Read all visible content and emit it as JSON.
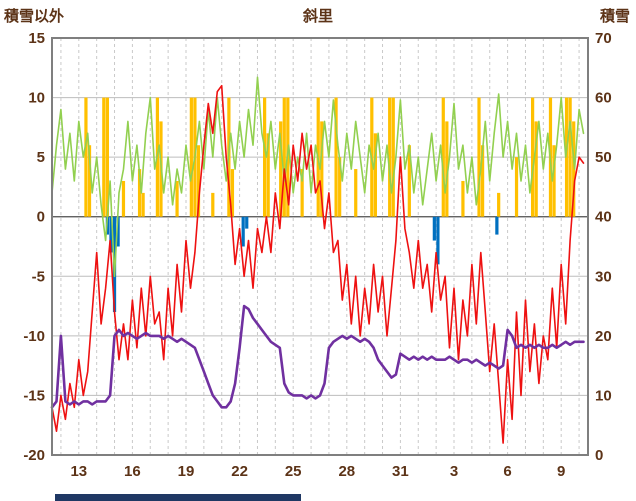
{
  "header": {
    "left_axis_title": "積雪以外",
    "chart_title": "斜里",
    "right_axis_title": "積雪"
  },
  "colors": {
    "text": "#5C3317",
    "grid_vertical": "#C9C9C9",
    "grid_horizontal": "#BDBDBD",
    "zero_line": "#4D4D4D",
    "border": "#7F7F7F",
    "background": "#FFFFFF"
  },
  "chart_data": {
    "type": "line",
    "title": "斜里",
    "grid": true,
    "left_axis": {
      "label": "積雪以外",
      "min": -20,
      "max": 15,
      "ticks": [
        15,
        10,
        5,
        0,
        -5,
        -10,
        -15,
        -20
      ]
    },
    "right_axis": {
      "label": "積雪",
      "min": 0,
      "max": 70,
      "ticks": [
        70,
        60,
        50,
        40,
        30,
        20,
        10,
        0
      ]
    },
    "x_axis": {
      "min": 11.5,
      "max": 41.5,
      "day_grid_start": 12,
      "day_grid_end": 41,
      "tick_positions": [
        13,
        16,
        19,
        22,
        25,
        28,
        31,
        34,
        37,
        40
      ],
      "tick_labels": [
        "13",
        "16",
        "19",
        "22",
        "25",
        "28",
        "31",
        "3",
        "6",
        "9"
      ]
    },
    "series": [
      {
        "name": "sunshine-bars",
        "type": "bar",
        "axis": "left",
        "color": "#FFC000",
        "bar_width_days": 0.18,
        "points": [
          [
            13.4,
            10
          ],
          [
            13.6,
            6
          ],
          [
            14.4,
            10
          ],
          [
            14.6,
            10
          ],
          [
            15.5,
            3
          ],
          [
            16.4,
            4
          ],
          [
            16.6,
            2
          ],
          [
            17.4,
            10
          ],
          [
            17.6,
            8
          ],
          [
            18.5,
            3
          ],
          [
            19.3,
            10
          ],
          [
            19.5,
            10
          ],
          [
            19.7,
            6
          ],
          [
            20.5,
            2
          ],
          [
            21.4,
            10
          ],
          [
            21.6,
            4
          ],
          [
            23.4,
            10
          ],
          [
            23.6,
            7
          ],
          [
            24.3,
            8
          ],
          [
            24.5,
            10
          ],
          [
            24.7,
            10
          ],
          [
            25.5,
            4
          ],
          [
            26.4,
            10
          ],
          [
            26.6,
            8
          ],
          [
            27.4,
            10
          ],
          [
            27.6,
            5
          ],
          [
            28.5,
            4
          ],
          [
            29.4,
            10
          ],
          [
            29.6,
            7
          ],
          [
            30.4,
            10
          ],
          [
            30.6,
            10
          ],
          [
            31.5,
            6
          ],
          [
            33.4,
            10
          ],
          [
            33.6,
            8
          ],
          [
            34.5,
            3
          ],
          [
            35.4,
            10
          ],
          [
            35.6,
            6
          ],
          [
            36.5,
            2
          ],
          [
            37.5,
            5
          ],
          [
            38.4,
            10
          ],
          [
            38.6,
            8
          ],
          [
            39.4,
            10
          ],
          [
            39.6,
            6
          ],
          [
            40.3,
            10
          ],
          [
            40.5,
            10
          ],
          [
            40.7,
            8
          ]
        ]
      },
      {
        "name": "precipitation-bars",
        "type": "bar",
        "axis": "left",
        "color": "#0070C0",
        "bar_width_days": 0.18,
        "points": [
          [
            14.6,
            -1.5
          ],
          [
            14.8,
            -3
          ],
          [
            15.0,
            -8
          ],
          [
            15.2,
            -2.5
          ],
          [
            22.2,
            -2.5
          ],
          [
            22.4,
            -1
          ],
          [
            32.9,
            -2
          ],
          [
            33.1,
            -4
          ],
          [
            36.4,
            -1.5
          ]
        ]
      },
      {
        "name": "wind-line",
        "type": "line",
        "axis": "left",
        "color": "#92D050",
        "width": 1.6,
        "x0": 11.5,
        "dx": 0.25,
        "values": [
          2,
          6,
          9,
          4,
          7,
          3,
          8,
          5,
          7,
          2,
          5,
          1,
          -2,
          3,
          -5,
          2,
          4,
          8,
          3,
          6,
          2,
          7,
          10,
          4,
          6,
          2,
          5,
          1,
          4,
          2,
          6,
          3,
          5,
          8,
          4,
          9,
          5,
          10,
          6,
          3,
          7,
          4,
          8,
          5,
          9,
          6,
          11.7,
          7,
          5,
          8,
          4,
          7,
          3,
          6,
          2,
          5,
          3,
          7,
          2,
          6,
          4,
          8,
          5,
          9.8,
          6,
          3,
          7,
          4,
          8,
          5,
          2,
          6,
          4,
          7,
          3,
          6,
          2,
          5,
          9.8,
          4,
          6,
          2,
          5,
          1,
          4,
          7,
          3,
          6,
          2,
          5,
          9.5,
          4,
          6,
          2,
          5,
          1,
          4,
          8,
          3,
          7,
          10.3,
          5,
          8,
          4,
          7,
          3,
          6,
          2,
          5,
          8,
          4,
          7,
          3,
          6,
          10,
          5,
          8,
          4,
          9,
          7
        ]
      },
      {
        "name": "temperature-line",
        "type": "line",
        "axis": "left",
        "color": "#EE1111",
        "width": 1.6,
        "x0": 11.5,
        "dx": 0.25,
        "values": [
          -16,
          -18,
          -15,
          -17,
          -14,
          -16,
          -12,
          -15,
          -13,
          -8,
          -3,
          -9,
          -6,
          -2,
          -8,
          -12,
          -9,
          -12,
          -7,
          -11,
          -6,
          -10,
          -5,
          -9,
          -8,
          -12,
          -6,
          -10,
          -4,
          -8,
          -2,
          -6,
          -3,
          2,
          6,
          9.5,
          7,
          10.5,
          11,
          5,
          1,
          -4,
          -1,
          -5,
          -2,
          -6,
          -1,
          -3,
          0,
          -3,
          2,
          -1,
          4,
          1,
          6,
          3,
          7,
          4,
          6,
          2,
          3,
          -1,
          2,
          -3,
          -2,
          -7,
          -4,
          -9,
          -5,
          -10,
          -6,
          -9,
          -4,
          -8,
          -5,
          -10,
          -6,
          -2,
          5,
          -1,
          -3,
          -6,
          -2,
          -6,
          -4,
          -8,
          -3,
          -7,
          -5,
          -11,
          -6,
          -12,
          -7,
          -10,
          -4,
          -9,
          -3,
          -8,
          -13,
          -9,
          -14,
          -19,
          -12,
          -17,
          -8,
          -15,
          -7,
          -13,
          -9,
          -14,
          -10,
          -12,
          -6,
          -11,
          -4,
          -9,
          -2,
          3,
          5,
          4.5
        ]
      },
      {
        "name": "snow-depth-line",
        "type": "line",
        "axis": "right",
        "color": "#7030A0",
        "width": 2.6,
        "x0": 11.5,
        "dx": 0.25,
        "values": [
          8,
          9,
          20,
          9,
          8.5,
          9,
          8.5,
          9,
          9,
          8.5,
          9,
          9,
          9,
          10,
          20,
          21,
          20,
          20.5,
          20,
          19.5,
          20,
          20.5,
          20,
          20,
          20,
          19.5,
          20,
          19.5,
          19,
          19.5,
          19,
          18.5,
          18,
          16,
          14,
          12,
          10,
          9,
          8,
          8,
          9,
          12,
          18,
          25,
          24.5,
          23,
          22,
          21,
          20,
          19,
          18.5,
          18,
          12,
          10.5,
          10,
          10,
          10,
          9.5,
          10,
          9.5,
          10,
          12,
          18,
          19,
          19.5,
          20,
          19.5,
          20,
          19.5,
          19,
          19.5,
          19,
          18,
          16,
          15,
          14,
          13,
          13.5,
          17,
          16.5,
          16,
          16.5,
          16,
          16.5,
          16,
          16.5,
          16,
          16,
          16,
          16.5,
          16,
          15.5,
          16,
          16,
          15.5,
          16,
          15.5,
          15,
          15.5,
          15,
          14.5,
          15,
          21,
          20,
          18,
          18.5,
          18,
          18.5,
          18,
          18.5,
          18,
          18,
          18.5,
          18,
          18.5,
          19,
          18.5,
          19,
          19,
          19
        ]
      }
    ]
  },
  "footer": {
    "strip_color": "#1F3864"
  }
}
